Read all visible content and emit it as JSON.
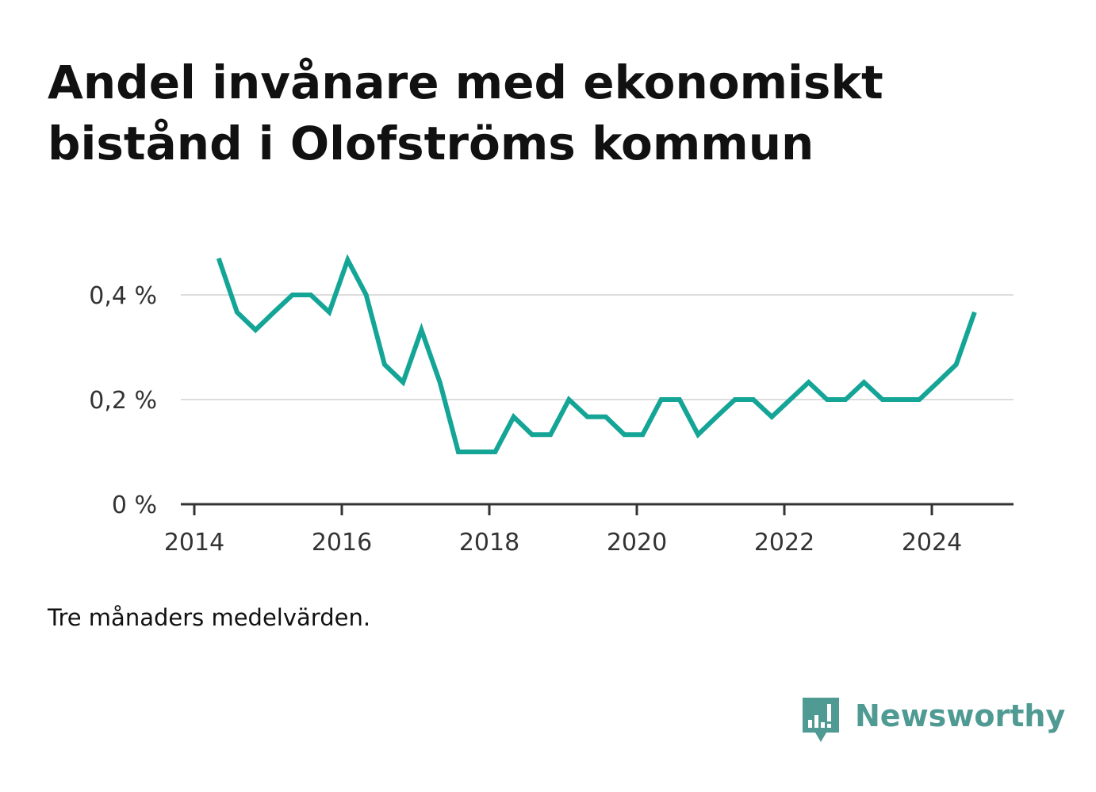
{
  "title": "Andel invånare med ekonomiskt bistånd i Olofströms kommun",
  "note": "Tre månaders medelvärden.",
  "brand": {
    "name": "Newsworthy",
    "icon": "bar-chart-speech-bubble-icon",
    "color": "#4f9a92"
  },
  "colors": {
    "line": "#14a596",
    "grid": "#dddddd",
    "axis": "#333333",
    "text": "#111111",
    "tick_text": "#333333"
  },
  "chart_data": {
    "type": "line",
    "title": "Andel invånare med ekonomiskt bistånd i Olofströms kommun",
    "xlabel": "",
    "ylabel": "",
    "xlim": [
      2014,
      2025.1
    ],
    "ylim": [
      0,
      0.5
    ],
    "grid": true,
    "legend": "none",
    "x_ticks": [
      2014,
      2016,
      2018,
      2020,
      2022,
      2024
    ],
    "x_tick_labels": [
      "2014",
      "2016",
      "2018",
      "2020",
      "2022",
      "2024"
    ],
    "y_ticks": [
      0,
      0.2,
      0.4
    ],
    "y_tick_labels": [
      "0 %",
      "0,2 %",
      "0,4 %"
    ],
    "series": [
      {
        "x": [
          2014.33,
          2014.58,
          2014.83,
          2015.08,
          2015.33,
          2015.58,
          2015.83,
          2016.08,
          2016.33,
          2016.58,
          2016.83,
          2017.08,
          2017.33,
          2017.58,
          2017.83,
          2018.08,
          2018.33,
          2018.58,
          2018.83,
          2019.08,
          2019.33,
          2019.58,
          2019.83,
          2020.08,
          2020.33,
          2020.58,
          2020.83,
          2021.08,
          2021.33,
          2021.58,
          2021.83,
          2022.08,
          2022.33,
          2022.58,
          2022.83,
          2023.08,
          2023.33,
          2023.58,
          2023.83,
          2024.08,
          2024.33,
          2024.58
        ],
        "values": [
          0.47,
          0.367,
          0.333,
          0.367,
          0.4,
          0.4,
          0.367,
          0.467,
          0.4,
          0.267,
          0.233,
          0.333,
          0.233,
          0.1,
          0.1,
          0.1,
          0.167,
          0.133,
          0.133,
          0.2,
          0.167,
          0.167,
          0.133,
          0.133,
          0.2,
          0.2,
          0.133,
          0.167,
          0.2,
          0.2,
          0.167,
          0.2,
          0.233,
          0.2,
          0.2,
          0.233,
          0.2,
          0.2,
          0.2,
          0.233,
          0.267,
          0.367
        ]
      }
    ]
  }
}
